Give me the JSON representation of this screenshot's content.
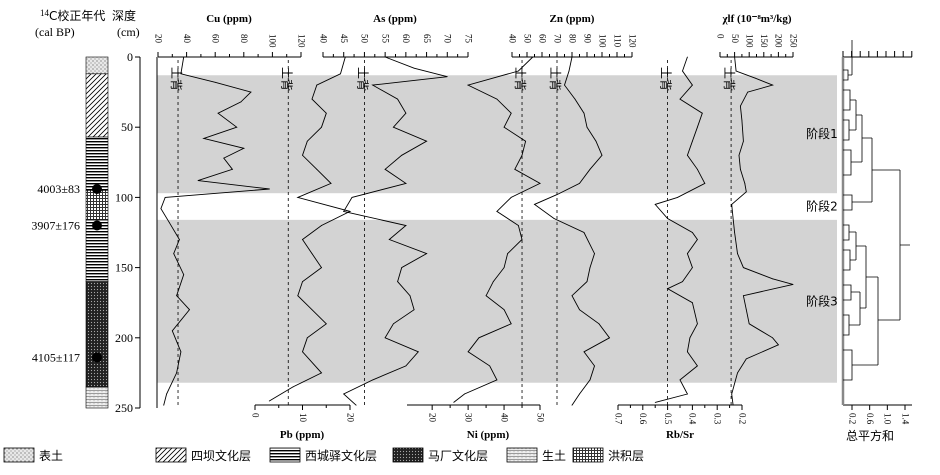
{
  "header": {
    "age_title_sup": "14",
    "age_title": "C校正年代",
    "age_unit": "(cal BP)",
    "depth_title": "深度",
    "depth_unit": "(cm)"
  },
  "dates": [
    {
      "label": "4003±83",
      "depth": 94
    },
    {
      "label": "3907±176",
      "depth": 120
    },
    {
      "label": "4105±117",
      "depth": 214
    }
  ],
  "stages": [
    {
      "label": "阶段1",
      "from": 13,
      "to": 97
    },
    {
      "label": "阶段2",
      "from": 97,
      "to": 116
    },
    {
      "label": "阶段3",
      "from": 116,
      "to": 232
    }
  ],
  "background_label": "土背",
  "legend": [
    {
      "key": "topsoil",
      "label": "表土"
    },
    {
      "key": "siba",
      "label": "四坝文化层"
    },
    {
      "key": "xichengyi",
      "label": "西城驿文化层"
    },
    {
      "key": "machang",
      "label": "马厂文化层"
    },
    {
      "key": "parent",
      "label": "生土"
    },
    {
      "key": "alluvial",
      "label": "洪积层"
    }
  ],
  "lithology": [
    {
      "key": "topsoil",
      "from": 0,
      "to": 12
    },
    {
      "key": "siba",
      "from": 12,
      "to": 57
    },
    {
      "key": "xichengyi",
      "from": 57,
      "to": 95
    },
    {
      "key": "alluvial",
      "from": 95,
      "to": 116
    },
    {
      "key": "xichengyi",
      "from": 116,
      "to": 160
    },
    {
      "key": "machang",
      "from": 160,
      "to": 235
    },
    {
      "key": "parent",
      "from": 235,
      "to": 250
    }
  ],
  "cluster": {
    "title": "总平方和",
    "ticks": [
      "0.2",
      "0.6",
      "1.0",
      "1.4"
    ]
  },
  "chart_data": {
    "type": "line",
    "y_axis": {
      "label": "深度 (cm)",
      "range": [
        0,
        250
      ],
      "ticks": [
        0,
        50,
        100,
        150,
        200,
        250
      ]
    },
    "series": [
      {
        "name": "Cu",
        "title": "Cu (ppm)",
        "axis": "top",
        "range": [
          20,
          120
        ],
        "ticks": [
          20,
          40,
          60,
          80,
          100,
          120
        ],
        "background": 34,
        "depth": [
          0,
          12,
          18,
          25,
          32,
          40,
          50,
          58,
          65,
          72,
          80,
          88,
          94,
          100,
          108,
          118,
          130,
          140,
          155,
          170,
          180,
          195,
          210,
          225,
          240,
          248
        ],
        "values": [
          38,
          36,
          60,
          85,
          78,
          62,
          75,
          52,
          80,
          66,
          72,
          48,
          98,
          25,
          22,
          28,
          35,
          31,
          38,
          33,
          42,
          30,
          36,
          33,
          26,
          24
        ]
      },
      {
        "name": "Pb",
        "title": "Pb (ppm)",
        "axis": "bottom",
        "range": [
          0,
          20
        ],
        "ticks": [
          0,
          10,
          20
        ],
        "background": 7,
        "depth": [
          0,
          12,
          20,
          30,
          40,
          50,
          60,
          70,
          80,
          90,
          100,
          110,
          120,
          130,
          140,
          150,
          160,
          170,
          180,
          190,
          200,
          210,
          225,
          235,
          245
        ],
        "values": [
          19,
          18,
          13,
          12,
          15,
          14,
          11,
          10,
          13,
          16,
          9,
          20,
          14,
          10,
          12,
          14,
          10,
          9,
          12,
          15,
          11,
          10,
          14,
          8,
          3
        ]
      },
      {
        "name": "As",
        "title": "As (ppm)",
        "axis": "top",
        "range": [
          40,
          75
        ],
        "ticks": [
          40,
          45,
          50,
          55,
          60,
          65,
          70,
          75
        ],
        "background": 50,
        "depth": [
          0,
          8,
          14,
          20,
          30,
          40,
          50,
          60,
          70,
          80,
          90,
          100,
          110,
          120,
          130,
          140,
          150,
          160,
          170,
          180,
          190,
          200,
          210,
          220,
          230,
          240,
          248
        ],
        "values": [
          55,
          62,
          70,
          52,
          58,
          60,
          57,
          65,
          59,
          55,
          60,
          47,
          45,
          60,
          56,
          65,
          59,
          58,
          61,
          62,
          57,
          55,
          63,
          60,
          52,
          45,
          48
        ]
      },
      {
        "name": "Ni",
        "title": "Ni (ppm)",
        "axis": "bottom",
        "range": [
          13,
          50
        ],
        "ticks": [
          20,
          30,
          40,
          50
        ],
        "background": 45,
        "depth": [
          0,
          10,
          20,
          30,
          40,
          50,
          60,
          70,
          80,
          90,
          100,
          110,
          120,
          130,
          140,
          150,
          160,
          170,
          180,
          190,
          200,
          210,
          220,
          230,
          240,
          246
        ],
        "values": [
          48,
          44,
          30,
          38,
          42,
          40,
          46,
          45,
          43,
          50,
          42,
          38,
          44,
          45,
          41,
          40,
          37,
          35,
          40,
          42,
          33,
          30,
          36,
          38,
          29,
          26
        ]
      },
      {
        "name": "Zn",
        "title": "Zn (ppm)",
        "axis": "top",
        "range": [
          40,
          120
        ],
        "ticks": [
          40,
          50,
          60,
          70,
          80,
          90,
          100,
          110,
          120
        ],
        "background": 70,
        "depth": [
          0,
          10,
          20,
          30,
          40,
          50,
          60,
          70,
          80,
          90,
          98,
          105,
          115,
          125,
          140,
          150,
          160,
          170,
          180,
          190,
          200,
          210,
          220,
          230,
          240,
          248
        ],
        "values": [
          80,
          78,
          75,
          82,
          88,
          90,
          96,
          100,
          92,
          85,
          70,
          55,
          68,
          88,
          95,
          92,
          90,
          80,
          85,
          98,
          105,
          88,
          95,
          92,
          85,
          80
        ]
      },
      {
        "name": "Rb/Sr",
        "title": "Rb/Sr",
        "axis": "bottom",
        "range": [
          0.7,
          0.2
        ],
        "ticks": [
          0.7,
          0.6,
          0.5,
          0.4,
          0.3,
          0.2
        ],
        "background": 0.5,
        "depth": [
          0,
          10,
          20,
          30,
          40,
          50,
          60,
          70,
          80,
          90,
          100,
          105,
          115,
          125,
          130,
          140,
          150,
          160,
          165,
          175,
          190,
          200,
          210,
          220,
          230,
          240,
          246
        ],
        "values": [
          0.42,
          0.44,
          0.4,
          0.45,
          0.36,
          0.38,
          0.4,
          0.42,
          0.38,
          0.35,
          0.46,
          0.55,
          0.5,
          0.4,
          0.38,
          0.42,
          0.4,
          0.44,
          0.5,
          0.4,
          0.38,
          0.41,
          0.42,
          0.38,
          0.45,
          0.42,
          0.55
        ]
      },
      {
        "name": "χlf",
        "title": "χlf (10⁻⁸m³/kg)",
        "axis": "top",
        "range": [
          0,
          250
        ],
        "ticks": [
          0,
          50,
          100,
          150,
          200,
          250
        ],
        "background": 38,
        "depth": [
          0,
          10,
          15,
          20,
          25,
          35,
          45,
          60,
          70,
          80,
          90,
          96,
          105,
          115,
          125,
          140,
          150,
          158,
          162,
          170,
          180,
          190,
          200,
          205,
          215,
          225,
          240,
          248
        ],
        "values": [
          50,
          55,
          120,
          180,
          95,
          70,
          75,
          80,
          65,
          70,
          85,
          90,
          40,
          45,
          50,
          60,
          80,
          180,
          250,
          80,
          90,
          100,
          180,
          200,
          90,
          60,
          40,
          45
        ]
      }
    ]
  }
}
